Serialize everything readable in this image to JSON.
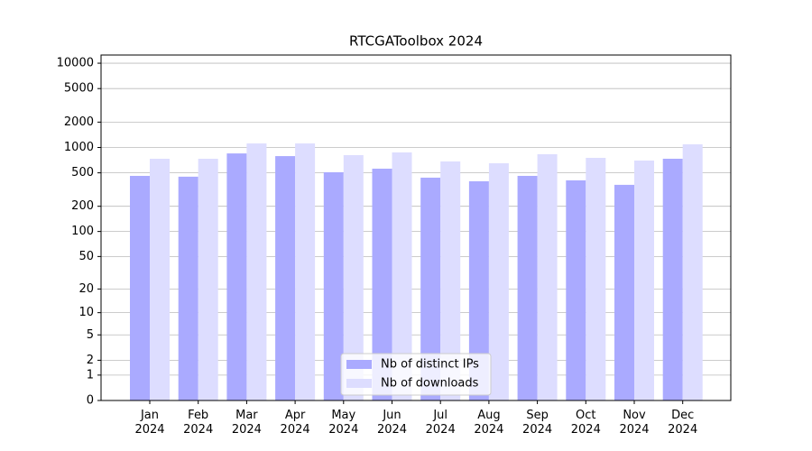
{
  "chart_data": {
    "type": "bar",
    "title": "RTCGAToolbox 2024",
    "categories": [
      "Jan 2024",
      "Feb 2024",
      "Mar 2024",
      "Apr 2024",
      "May 2024",
      "Jun 2024",
      "Jul 2024",
      "Aug 2024",
      "Sep 2024",
      "Oct 2024",
      "Nov 2024",
      "Dec 2024"
    ],
    "series": [
      {
        "name": "Nb of distinct IPs",
        "color": "#aaaaff",
        "values": [
          460,
          450,
          850,
          790,
          508,
          560,
          438,
          397,
          460,
          407,
          360,
          735
        ]
      },
      {
        "name": "Nb of downloads",
        "color": "#ddddff",
        "values": [
          735,
          735,
          1117,
          1117,
          811,
          873,
          683,
          650,
          832,
          753,
          700,
          1090
        ]
      }
    ],
    "yscale": "log1p",
    "ylim": [
      0,
      12500
    ],
    "yticks": [
      0,
      1,
      2,
      5,
      10,
      20,
      50,
      100,
      200,
      500,
      1000,
      2000,
      5000,
      10000
    ],
    "grid": true,
    "legend": "lower center"
  }
}
